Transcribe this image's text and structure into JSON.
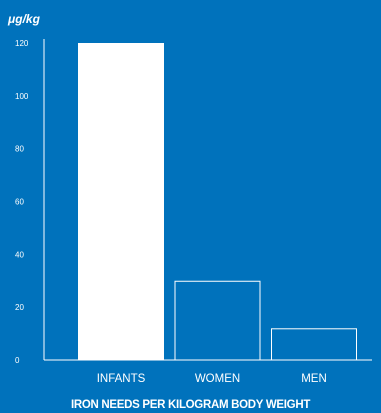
{
  "unit_label": "μg/kg",
  "chart_data": {
    "type": "bar",
    "title": "IRON NEEDS PER KILOGRAM BODY WEIGHT",
    "ylabel": "μg/kg",
    "xlabel": "",
    "categories": [
      "INFANTS",
      "WOMEN",
      "MEN"
    ],
    "values": [
      120,
      30,
      12
    ],
    "ylim": [
      0,
      120
    ],
    "yticks": [
      0,
      20,
      40,
      60,
      80,
      100,
      120
    ],
    "grid": false,
    "bar_styles": [
      "filled",
      "outline",
      "outline"
    ],
    "colors": {
      "background": "#0072bc",
      "bar": "#ffffff",
      "text": "#ffffff"
    }
  }
}
